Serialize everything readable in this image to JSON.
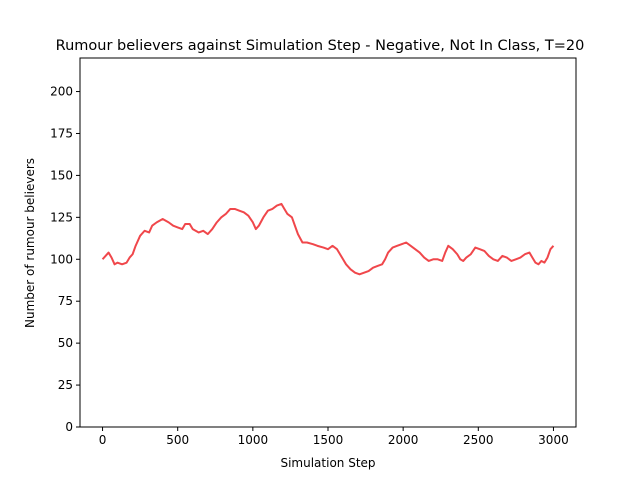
{
  "chart_data": {
    "type": "line",
    "title": "Rumour believers against Simulation Step - Negative, Not In Class, T=20",
    "xlabel": "Simulation Step",
    "ylabel": "Number of rumour believers",
    "xlim": [
      -150,
      3150
    ],
    "ylim": [
      0,
      220
    ],
    "xticks": [
      0,
      500,
      1000,
      1500,
      2000,
      2500,
      3000
    ],
    "yticks": [
      0,
      25,
      50,
      75,
      100,
      125,
      150,
      175,
      200
    ],
    "grid": false,
    "legend": null,
    "series": [
      {
        "color": "#f0474b",
        "points": [
          [
            0,
            100
          ],
          [
            20,
            102
          ],
          [
            40,
            104
          ],
          [
            60,
            101
          ],
          [
            80,
            97
          ],
          [
            100,
            98
          ],
          [
            130,
            97
          ],
          [
            160,
            98
          ],
          [
            180,
            101
          ],
          [
            200,
            103
          ],
          [
            220,
            108
          ],
          [
            250,
            114
          ],
          [
            280,
            117
          ],
          [
            310,
            116
          ],
          [
            330,
            120
          ],
          [
            360,
            122
          ],
          [
            400,
            124
          ],
          [
            440,
            122
          ],
          [
            470,
            120
          ],
          [
            500,
            119
          ],
          [
            530,
            118
          ],
          [
            550,
            121
          ],
          [
            580,
            121
          ],
          [
            600,
            118
          ],
          [
            640,
            116
          ],
          [
            670,
            117
          ],
          [
            700,
            115
          ],
          [
            730,
            118
          ],
          [
            760,
            122
          ],
          [
            790,
            125
          ],
          [
            820,
            127
          ],
          [
            850,
            130
          ],
          [
            880,
            130
          ],
          [
            910,
            129
          ],
          [
            940,
            128
          ],
          [
            970,
            126
          ],
          [
            1000,
            122
          ],
          [
            1020,
            118
          ],
          [
            1040,
            120
          ],
          [
            1070,
            125
          ],
          [
            1100,
            129
          ],
          [
            1130,
            130
          ],
          [
            1160,
            132
          ],
          [
            1190,
            133
          ],
          [
            1210,
            130
          ],
          [
            1230,
            127
          ],
          [
            1260,
            125
          ],
          [
            1280,
            120
          ],
          [
            1300,
            115
          ],
          [
            1330,
            110
          ],
          [
            1360,
            110
          ],
          [
            1400,
            109
          ],
          [
            1430,
            108
          ],
          [
            1470,
            107
          ],
          [
            1500,
            106
          ],
          [
            1530,
            108
          ],
          [
            1560,
            106
          ],
          [
            1580,
            103
          ],
          [
            1600,
            100
          ],
          [
            1620,
            97
          ],
          [
            1650,
            94
          ],
          [
            1680,
            92
          ],
          [
            1710,
            91
          ],
          [
            1740,
            92
          ],
          [
            1770,
            93
          ],
          [
            1800,
            95
          ],
          [
            1830,
            96
          ],
          [
            1860,
            97
          ],
          [
            1880,
            100
          ],
          [
            1900,
            104
          ],
          [
            1930,
            107
          ],
          [
            1960,
            108
          ],
          [
            1990,
            109
          ],
          [
            2020,
            110
          ],
          [
            2050,
            108
          ],
          [
            2080,
            106
          ],
          [
            2110,
            104
          ],
          [
            2140,
            101
          ],
          [
            2170,
            99
          ],
          [
            2200,
            100
          ],
          [
            2230,
            100
          ],
          [
            2260,
            99
          ],
          [
            2280,
            104
          ],
          [
            2300,
            108
          ],
          [
            2330,
            106
          ],
          [
            2360,
            103
          ],
          [
            2380,
            100
          ],
          [
            2400,
            99
          ],
          [
            2420,
            101
          ],
          [
            2450,
            103
          ],
          [
            2480,
            107
          ],
          [
            2510,
            106
          ],
          [
            2540,
            105
          ],
          [
            2570,
            102
          ],
          [
            2600,
            100
          ],
          [
            2630,
            99
          ],
          [
            2660,
            102
          ],
          [
            2690,
            101
          ],
          [
            2720,
            99
          ],
          [
            2750,
            100
          ],
          [
            2780,
            101
          ],
          [
            2810,
            103
          ],
          [
            2840,
            104
          ],
          [
            2860,
            101
          ],
          [
            2880,
            98
          ],
          [
            2900,
            97
          ],
          [
            2920,
            99
          ],
          [
            2940,
            98
          ],
          [
            2960,
            101
          ],
          [
            2980,
            106
          ],
          [
            3000,
            108
          ]
        ]
      }
    ]
  }
}
